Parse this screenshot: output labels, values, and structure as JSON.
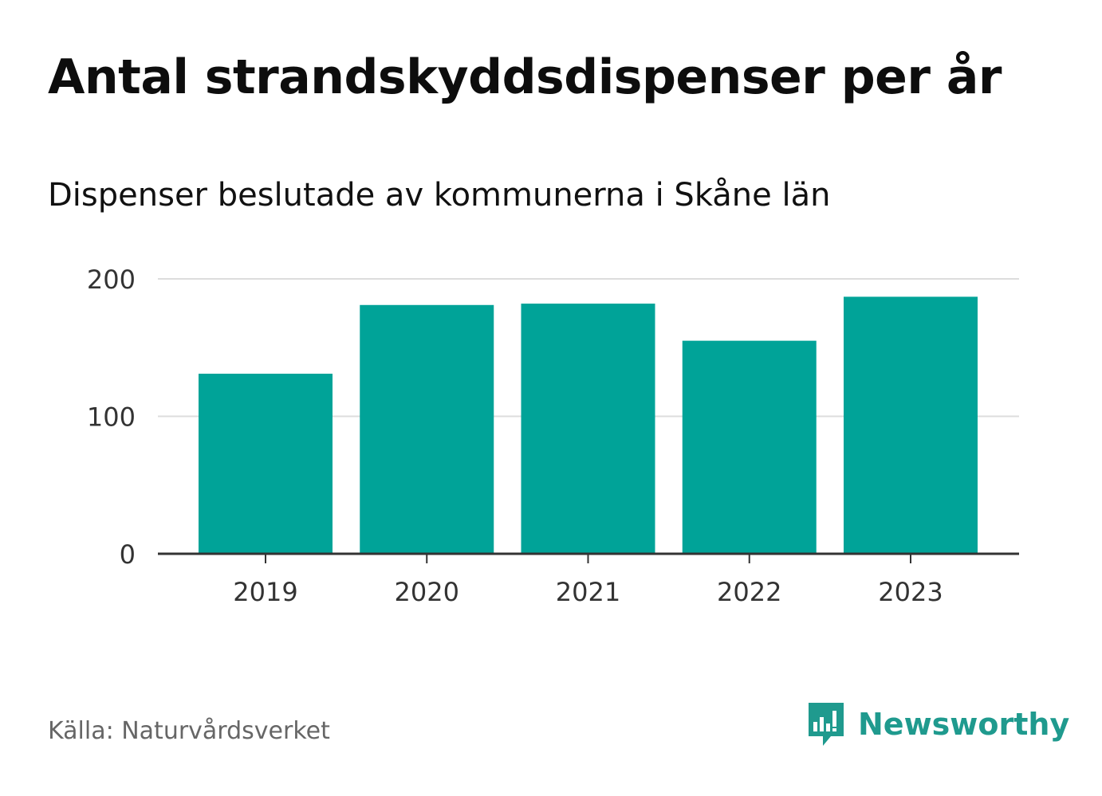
{
  "title": "Antal strandskyddsdispenser per år",
  "subtitle": "Dispenser beslutade av kommunerna i Skåne län",
  "source": "Källa: Naturvårdsverket",
  "brand": {
    "name": "Newsworthy",
    "icon": "newsworthy-bar-chart-icon",
    "color": "#1f9a8e"
  },
  "colors": {
    "bar": "#00a398",
    "grid": "#dddddd",
    "axis": "#333333",
    "label": "#333333"
  },
  "chart_data": {
    "type": "bar",
    "title": "Antal strandskyddsdispenser per år",
    "subtitle": "Dispenser beslutade av kommunerna i Skåne län",
    "categories": [
      "2019",
      "2020",
      "2021",
      "2022",
      "2023"
    ],
    "values": [
      131,
      181,
      182,
      155,
      187
    ],
    "ylim": [
      0,
      200
    ],
    "yticks": [
      0,
      100,
      200
    ],
    "grid": true,
    "legend": "none"
  }
}
